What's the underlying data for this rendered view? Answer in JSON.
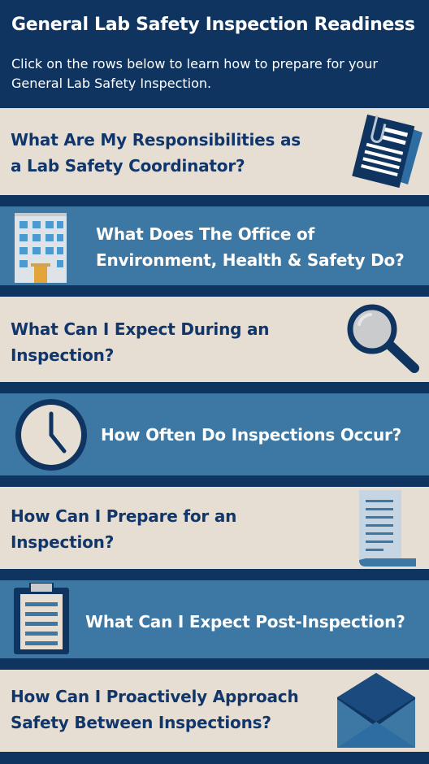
{
  "header": {
    "title": "General Lab Safety Inspection Readiness",
    "intro": "Click on the rows below to learn how to prepare for your General Lab Safety Inspection."
  },
  "rows": [
    {
      "label_line1": "What Are My Responsibilities as",
      "label_line2": "a Lab Safety Coordinator?",
      "icon": "documents-icon"
    },
    {
      "label_line1": "What Does The Office of",
      "label_line2": "Environment, Health & Safety Do?",
      "icon": "building-icon"
    },
    {
      "label_line1": "What Can I Expect During an",
      "label_line2": "Inspection?",
      "icon": "magnifying-glass-icon"
    },
    {
      "label_line1": "How Often Do Inspections Occur?",
      "icon": "clock-icon"
    },
    {
      "label_line1": "How Can I Prepare for an",
      "label_line2": "Inspection?",
      "icon": "scroll-document-icon"
    },
    {
      "label_line1": "What Can I Expect Post-Inspection?",
      "icon": "clipboard-icon"
    },
    {
      "label_line1": "How Can I Proactively Approach",
      "label_line2": "Safety Between Inspections?",
      "icon": "envelope-icon"
    }
  ],
  "colors": {
    "navy": "#0f3460",
    "light_row": "#e6ded2",
    "blue_row": "#3d77a3",
    "dark_text": "#11366b"
  }
}
